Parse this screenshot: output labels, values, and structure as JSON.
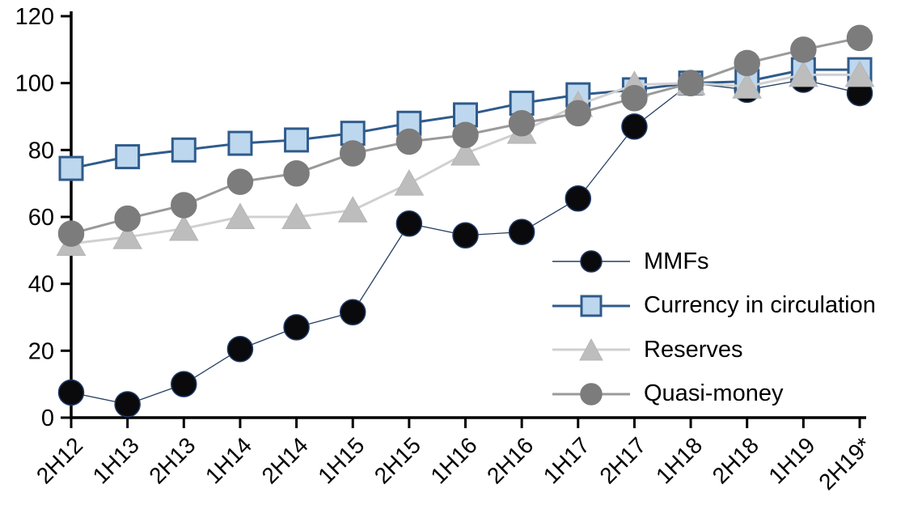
{
  "chart_data": {
    "type": "line",
    "title": "",
    "xlabel": "",
    "ylabel": "",
    "categories": [
      "2H12",
      "1H13",
      "2H13",
      "1H14",
      "2H14",
      "1H15",
      "2H15",
      "1H16",
      "2H16",
      "1H17",
      "2H17",
      "1H18",
      "2H18",
      "1H19",
      "2H19*"
    ],
    "ylim": [
      0,
      120
    ],
    "yticks": [
      0,
      20,
      40,
      60,
      80,
      100,
      120
    ],
    "grid": false,
    "legend_position": "inside-right",
    "axis_color": "#000000",
    "series": [
      {
        "name": "MMFs",
        "marker": "circle",
        "marker_color": "#0a0a0c",
        "marker_stroke": "#1f3864",
        "line_color": "#263f63",
        "line_width": 1.3,
        "marker_size": 31,
        "values": [
          7.5,
          4,
          10,
          20.5,
          27,
          31.5,
          58,
          54.5,
          55.5,
          65.5,
          87,
          100,
          98,
          101,
          97
        ]
      },
      {
        "name": "Currency in circulation",
        "marker": "square",
        "marker_color": "#bdd7ee",
        "marker_stroke": "#2f5b8c",
        "line_color": "#2f5b8c",
        "line_width": 3,
        "marker_size": 28,
        "values": [
          74.5,
          78,
          80,
          82,
          83,
          85,
          88,
          90.5,
          94,
          96.5,
          98,
          100,
          100.5,
          104,
          104
        ]
      },
      {
        "name": "Reserves",
        "marker": "triangle",
        "marker_color": "#bdbdbd",
        "marker_stroke": "#b5b5b5",
        "line_color": "#d0d0d0",
        "line_width": 3,
        "marker_size": 33,
        "values": [
          52,
          54,
          56.5,
          60,
          60,
          62,
          70,
          79,
          85.5,
          93.5,
          99.5,
          100,
          99,
          102.5,
          102.5
        ]
      },
      {
        "name": "Quasi-money",
        "marker": "circle",
        "marker_color": "#7c7c7c",
        "marker_stroke": "#7c7c7c",
        "line_color": "#9a9a9a",
        "line_width": 3,
        "marker_size": 31,
        "values": [
          55,
          59.5,
          63.5,
          70.5,
          73,
          79,
          82.5,
          84.5,
          88,
          91,
          95.5,
          100,
          106,
          110,
          113.5
        ]
      }
    ]
  }
}
